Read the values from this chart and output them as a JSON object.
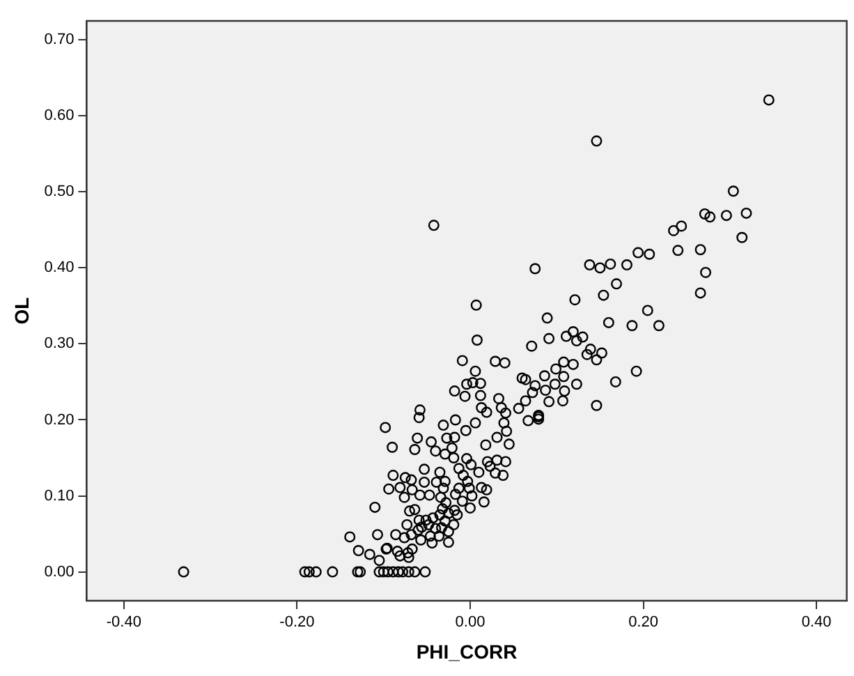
{
  "chart_data": {
    "type": "scatter",
    "xlabel": "PHI_CORR",
    "ylabel": "OL",
    "xlim": [
      -0.443,
      0.435
    ],
    "ylim": [
      -0.038,
      0.725
    ],
    "xticks": [
      {
        "value": -0.4,
        "label": "-0.40"
      },
      {
        "value": -0.2,
        "label": "-0.20"
      },
      {
        "value": 0,
        "label": "0.00"
      },
      {
        "value": 0.2,
        "label": "0.20"
      },
      {
        "value": 0.4,
        "label": "0.40"
      }
    ],
    "yticks": [
      {
        "value": 0,
        "label": "0.00"
      },
      {
        "value": 0.1,
        "label": "0.10"
      },
      {
        "value": 0.2,
        "label": "0.20"
      },
      {
        "value": 0.3,
        "label": "0.30"
      },
      {
        "value": 0.4,
        "label": "0.40"
      },
      {
        "value": 0.5,
        "label": "0.50"
      },
      {
        "value": 0.6,
        "label": "0.60"
      },
      {
        "value": 0.7,
        "label": "0.70"
      }
    ],
    "grid": false,
    "legend": false,
    "marker": "circle",
    "series": [
      {
        "color": "#000000",
        "x": [
          0.345,
          0.146,
          0.304,
          0.271,
          0.277,
          0.296,
          0.319,
          0.314,
          0.235,
          0.244,
          0.24,
          0.266,
          0.272,
          0.266,
          0.194,
          0.207,
          0.138,
          0.15,
          0.162,
          0.181,
          0.169,
          0.154,
          0.121,
          0.075,
          0.205,
          0.16,
          0.187,
          0.218,
          0.089,
          0.071,
          0.091,
          0.111,
          0.119,
          0.13,
          0.123,
          0.139,
          0.152,
          0.146,
          0.135,
          0.108,
          0.119,
          0.099,
          0.086,
          0.108,
          0.192,
          0.168,
          0.146,
          0.064,
          0.075,
          0.087,
          0.098,
          0.109,
          0.123,
          0.072,
          0.091,
          0.107,
          0.064,
          0.079,
          0.079,
          0.007,
          0.008,
          -0.009,
          0.029,
          0.04,
          0.006,
          0.06,
          -0.004,
          0.003,
          0.012,
          -0.018,
          -0.006,
          0.012,
          0.033,
          0.013,
          0.036,
          0.019,
          0.041,
          0.056,
          0.067,
          0.079,
          -0.058,
          -0.059,
          -0.031,
          -0.017,
          -0.005,
          0.006,
          0.039,
          0.042,
          0.031,
          0.045,
          0.018,
          -0.098,
          -0.09,
          -0.061,
          -0.064,
          -0.045,
          -0.027,
          -0.018,
          -0.04,
          -0.021,
          -0.029,
          -0.019,
          -0.004,
          0.001,
          -0.013,
          -0.053,
          -0.035,
          -0.008,
          0.01,
          0.02,
          0.023,
          0.031,
          0.041,
          0.029,
          0.038,
          -0.089,
          -0.075,
          -0.068,
          -0.053,
          -0.039,
          -0.029,
          -0.003,
          -0.094,
          -0.081,
          -0.067,
          -0.031,
          -0.013,
          -0.001,
          0.013,
          0.019,
          -0.076,
          -0.058,
          -0.047,
          -0.034,
          -0.017,
          0.002,
          0.016,
          -0.028,
          -0.009,
          0,
          -0.032,
          -0.018,
          -0.07,
          -0.064,
          -0.025,
          -0.015,
          -0.073,
          -0.059,
          -0.051,
          -0.043,
          -0.035,
          -0.029,
          -0.019,
          -0.056,
          -0.048,
          -0.04,
          -0.033,
          -0.025,
          -0.06,
          -0.068,
          -0.046,
          -0.036,
          -0.086,
          -0.076,
          -0.057,
          -0.044,
          -0.025,
          -0.096,
          -0.084,
          -0.072,
          -0.067,
          -0.081,
          -0.071,
          -0.052,
          -0.071,
          -0.083,
          -0.095,
          -0.089,
          -0.11,
          -0.139,
          -0.107,
          -0.129,
          -0.116,
          -0.105,
          -0.097,
          -0.331,
          -0.191,
          -0.186,
          -0.178,
          -0.159,
          -0.13,
          -0.127,
          -0.105,
          -0.1,
          -0.078,
          -0.064,
          -0.042
        ],
        "values": [
          0.621,
          0.567,
          0.501,
          0.471,
          0.467,
          0.469,
          0.472,
          0.44,
          0.449,
          0.455,
          0.423,
          0.424,
          0.394,
          0.367,
          0.42,
          0.418,
          0.404,
          0.4,
          0.405,
          0.404,
          0.379,
          0.364,
          0.358,
          0.399,
          0.344,
          0.328,
          0.324,
          0.324,
          0.334,
          0.297,
          0.307,
          0.31,
          0.316,
          0.309,
          0.304,
          0.293,
          0.288,
          0.279,
          0.286,
          0.276,
          0.273,
          0.267,
          0.258,
          0.257,
          0.264,
          0.25,
          0.219,
          0.253,
          0.245,
          0.239,
          0.247,
          0.238,
          0.247,
          0.236,
          0.224,
          0.225,
          0.225,
          0.206,
          0.201,
          0.351,
          0.305,
          0.278,
          0.277,
          0.275,
          0.264,
          0.255,
          0.247,
          0.249,
          0.248,
          0.238,
          0.231,
          0.232,
          0.228,
          0.216,
          0.216,
          0.21,
          0.209,
          0.215,
          0.199,
          0.204,
          0.213,
          0.203,
          0.193,
          0.2,
          0.186,
          0.196,
          0.196,
          0.185,
          0.177,
          0.168,
          0.167,
          0.19,
          0.164,
          0.176,
          0.161,
          0.171,
          0.176,
          0.177,
          0.159,
          0.163,
          0.155,
          0.15,
          0.149,
          0.141,
          0.136,
          0.135,
          0.131,
          0.127,
          0.131,
          0.145,
          0.139,
          0.147,
          0.145,
          0.13,
          0.127,
          0.127,
          0.124,
          0.121,
          0.118,
          0.118,
          0.119,
          0.119,
          0.109,
          0.111,
          0.108,
          0.11,
          0.11,
          0.11,
          0.111,
          0.108,
          0.098,
          0.101,
          0.101,
          0.098,
          0.102,
          0.1,
          0.092,
          0.091,
          0.093,
          0.084,
          0.083,
          0.081,
          0.08,
          0.082,
          0.077,
          0.075,
          0.062,
          0.068,
          0.068,
          0.071,
          0.075,
          0.067,
          0.062,
          0.059,
          0.062,
          0.057,
          0.058,
          0.053,
          0.055,
          0.049,
          0.047,
          0.047,
          0.049,
          0.045,
          0.042,
          0.038,
          0.039,
          0.031,
          0.027,
          0.025,
          0.03,
          0.021,
          0.019,
          0,
          0,
          0,
          0,
          0,
          0.085,
          0.046,
          0.049,
          0.028,
          0.023,
          0.015,
          0.03,
          0,
          0,
          0,
          0,
          0,
          0,
          0,
          0,
          0,
          0,
          0,
          0.456
        ]
      }
    ]
  }
}
